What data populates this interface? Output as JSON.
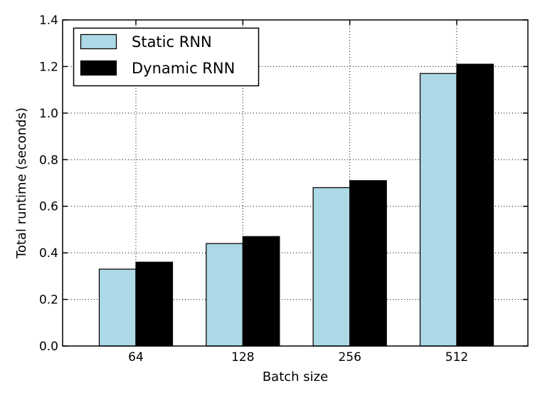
{
  "figure": {
    "background_color": "#ffffff",
    "frame_color": "#000000",
    "grid_style": "dotted"
  },
  "chart_data": {
    "type": "bar",
    "title": "",
    "xlabel": "Batch size",
    "ylabel": "Total runtime (seconds)",
    "categories": [
      "64",
      "128",
      "256",
      "512"
    ],
    "series": [
      {
        "name": "Static RNN",
        "color": "#ADD8E6",
        "values": [
          0.33,
          0.44,
          0.68,
          1.17
        ]
      },
      {
        "name": "Dynamic RNN",
        "color": "#000000",
        "values": [
          0.36,
          0.47,
          0.71,
          1.21
        ]
      }
    ],
    "ylim": [
      0,
      1.4
    ],
    "yticks": [
      "0.0",
      "0.2",
      "0.4",
      "0.6",
      "0.8",
      "1.0",
      "1.2",
      "1.4"
    ],
    "bar_edge_color": "#000000",
    "grid": true,
    "legend_position": "upper left"
  }
}
